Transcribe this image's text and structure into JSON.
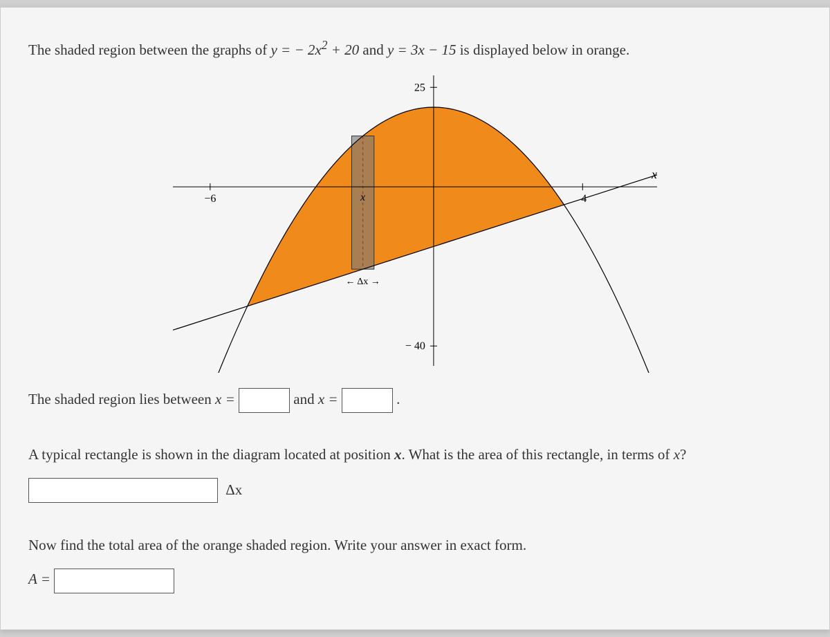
{
  "problem": {
    "intro_prefix": "The shaded region between the graphs of ",
    "eq1_lhs": "y",
    "eq1_rhs_before": " = − 2",
    "eq1_rhs_var": "x",
    "eq1_rhs_exp": "2",
    "eq1_rhs_after": " + 20",
    "between": " and ",
    "eq2_lhs": "y",
    "eq2_rhs": " = 3x − 15",
    "intro_suffix": " is displayed below in orange."
  },
  "chart": {
    "xlim": [
      -7,
      6
    ],
    "ylim": [
      -45,
      28
    ],
    "x_tick_value": -6,
    "x_tick_label": "−6",
    "x_tick2_value": 4,
    "x_tick2_label": "4",
    "y_top_value": 25,
    "y_top_label": "25",
    "y_bot_value": -40,
    "y_bot_label": "− 40",
    "x_axis_label": "x",
    "parabola": {
      "a": -2,
      "c": 20
    },
    "line": {
      "m": 3,
      "b": -15
    },
    "region_fill": "#f08a1a",
    "region_stroke": "#b85f00",
    "rect_x": -2.2,
    "rect_dx": 0.6,
    "rect_fill": "rgba(120,120,120,0.6)",
    "rect_stroke": "#333",
    "dx_arrow_label": "← Δx →",
    "x_label_at_rect": "x",
    "curve_color": "#000000",
    "background_color": "#f5f5f5"
  },
  "q1": {
    "text_before": "The shaded region lies between ",
    "var_label_1": "x =",
    "text_mid": " and ",
    "var_label_2": "x =",
    "text_after": "."
  },
  "q2": {
    "line1": "A typical rectangle is shown in the diagram located at position ",
    "bold_var": "x",
    "line1_after": ". What is the area of this rectangle, in terms of ",
    "var2": "x",
    "line1_end": "?",
    "delta_label": "Δx"
  },
  "q3": {
    "text": "Now find the total area of the orange shaded region. Write your answer in exact form.",
    "label": "A ="
  }
}
